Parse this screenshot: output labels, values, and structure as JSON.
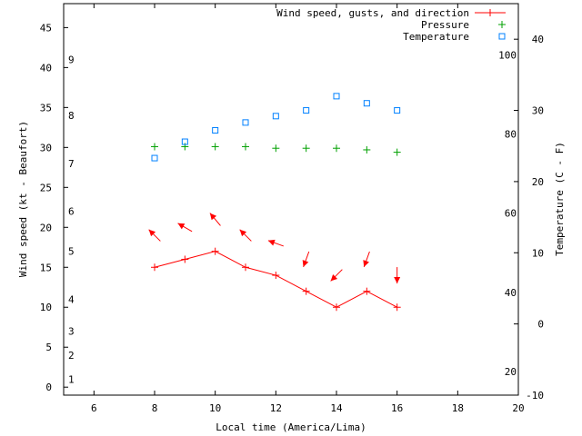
{
  "chart_data": {
    "type": "line",
    "xlabel": "Local time (America/Lima)",
    "ylabel": "Wind speed (kt - Beaufort)",
    "y2label": "Temperature (C - F)",
    "xlim": [
      5,
      20
    ],
    "ylim": [
      -1,
      48
    ],
    "y2lim": [
      -10,
      45
    ],
    "x_ticks": [
      6,
      8,
      10,
      12,
      14,
      16,
      18,
      20
    ],
    "y_ticks": [
      0,
      5,
      10,
      15,
      20,
      25,
      30,
      35,
      40,
      45
    ],
    "y2_ticks": [
      -10,
      0,
      10,
      20,
      30,
      40
    ],
    "fahrenheit_ticks": [
      20,
      40,
      60,
      80,
      100
    ],
    "beaufort_ticks": [
      {
        "label": "1",
        "kt": 1
      },
      {
        "label": "2",
        "kt": 4
      },
      {
        "label": "3",
        "kt": 7
      },
      {
        "label": "4",
        "kt": 11
      },
      {
        "label": "5",
        "kt": 17
      },
      {
        "label": "6",
        "kt": 22
      },
      {
        "label": "7",
        "kt": 28
      },
      {
        "label": "8",
        "kt": 34
      },
      {
        "label": "9",
        "kt": 41
      }
    ],
    "legend_position": "top-right",
    "series": [
      {
        "name": "Wind speed, gusts, and direction",
        "color": "#ff0000",
        "marker": "plus",
        "x": [
          8,
          9,
          10,
          11,
          12,
          13,
          14,
          15,
          16
        ],
        "values": [
          15,
          16,
          17,
          15,
          14,
          12,
          10,
          12,
          10
        ],
        "arrow_y": [
          19,
          20,
          21,
          19,
          18,
          16,
          14,
          16,
          14
        ],
        "arrow_direction_deg": [
          315,
          300,
          320,
          315,
          290,
          200,
          225,
          200,
          180
        ]
      },
      {
        "name": "Pressure",
        "color": "#00a000",
        "marker": "plus",
        "x": [
          8,
          9,
          10,
          11,
          12,
          13,
          14,
          15,
          16
        ],
        "values": [
          30.1,
          30.1,
          30.1,
          30.1,
          29.9,
          29.9,
          29.9,
          29.7,
          29.4
        ]
      },
      {
        "name": "Temperature",
        "color": "#0080ff",
        "marker": "square",
        "axis": "y2",
        "x": [
          8,
          9,
          10,
          11,
          12,
          13,
          14,
          15,
          16
        ],
        "values": [
          23.3,
          25.6,
          27.2,
          28.3,
          29.2,
          30.0,
          32.0,
          31.0,
          30.0
        ]
      }
    ]
  }
}
